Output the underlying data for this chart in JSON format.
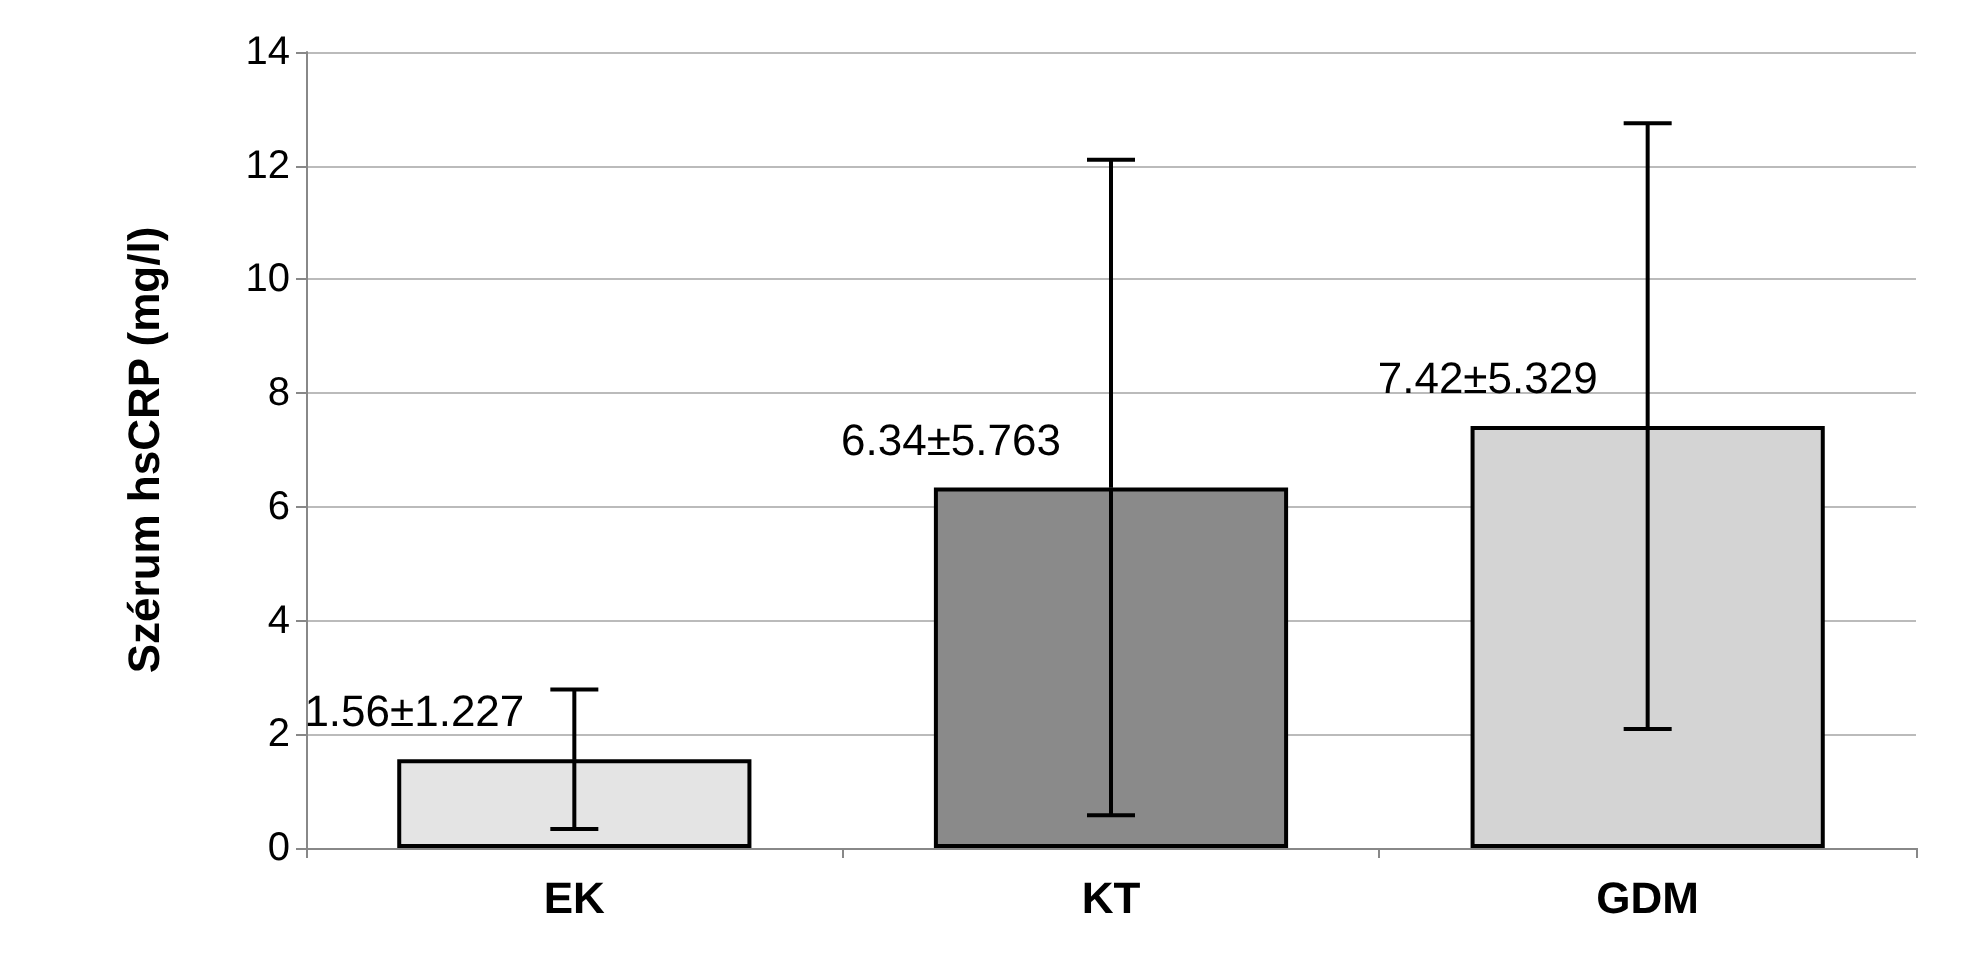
{
  "chart_data": {
    "type": "bar",
    "ylabel": "Szérum hsCRP (mg/l)",
    "categories": [
      "EK",
      "KT",
      "GDM"
    ],
    "values": [
      1.56,
      6.34,
      7.42
    ],
    "colors": [
      "#e4e4e4",
      "#8a8a8a",
      "#d4d4d4"
    ],
    "errors": [
      1.227,
      5.763,
      5.329
    ],
    "value_labels": [
      "1.56±1.227",
      "6.34±5.763",
      "7.42±5.329"
    ],
    "ylim": [
      0,
      14
    ],
    "yticks": [
      0,
      2,
      4,
      6,
      8,
      10,
      12,
      14
    ],
    "grid": "y"
  }
}
